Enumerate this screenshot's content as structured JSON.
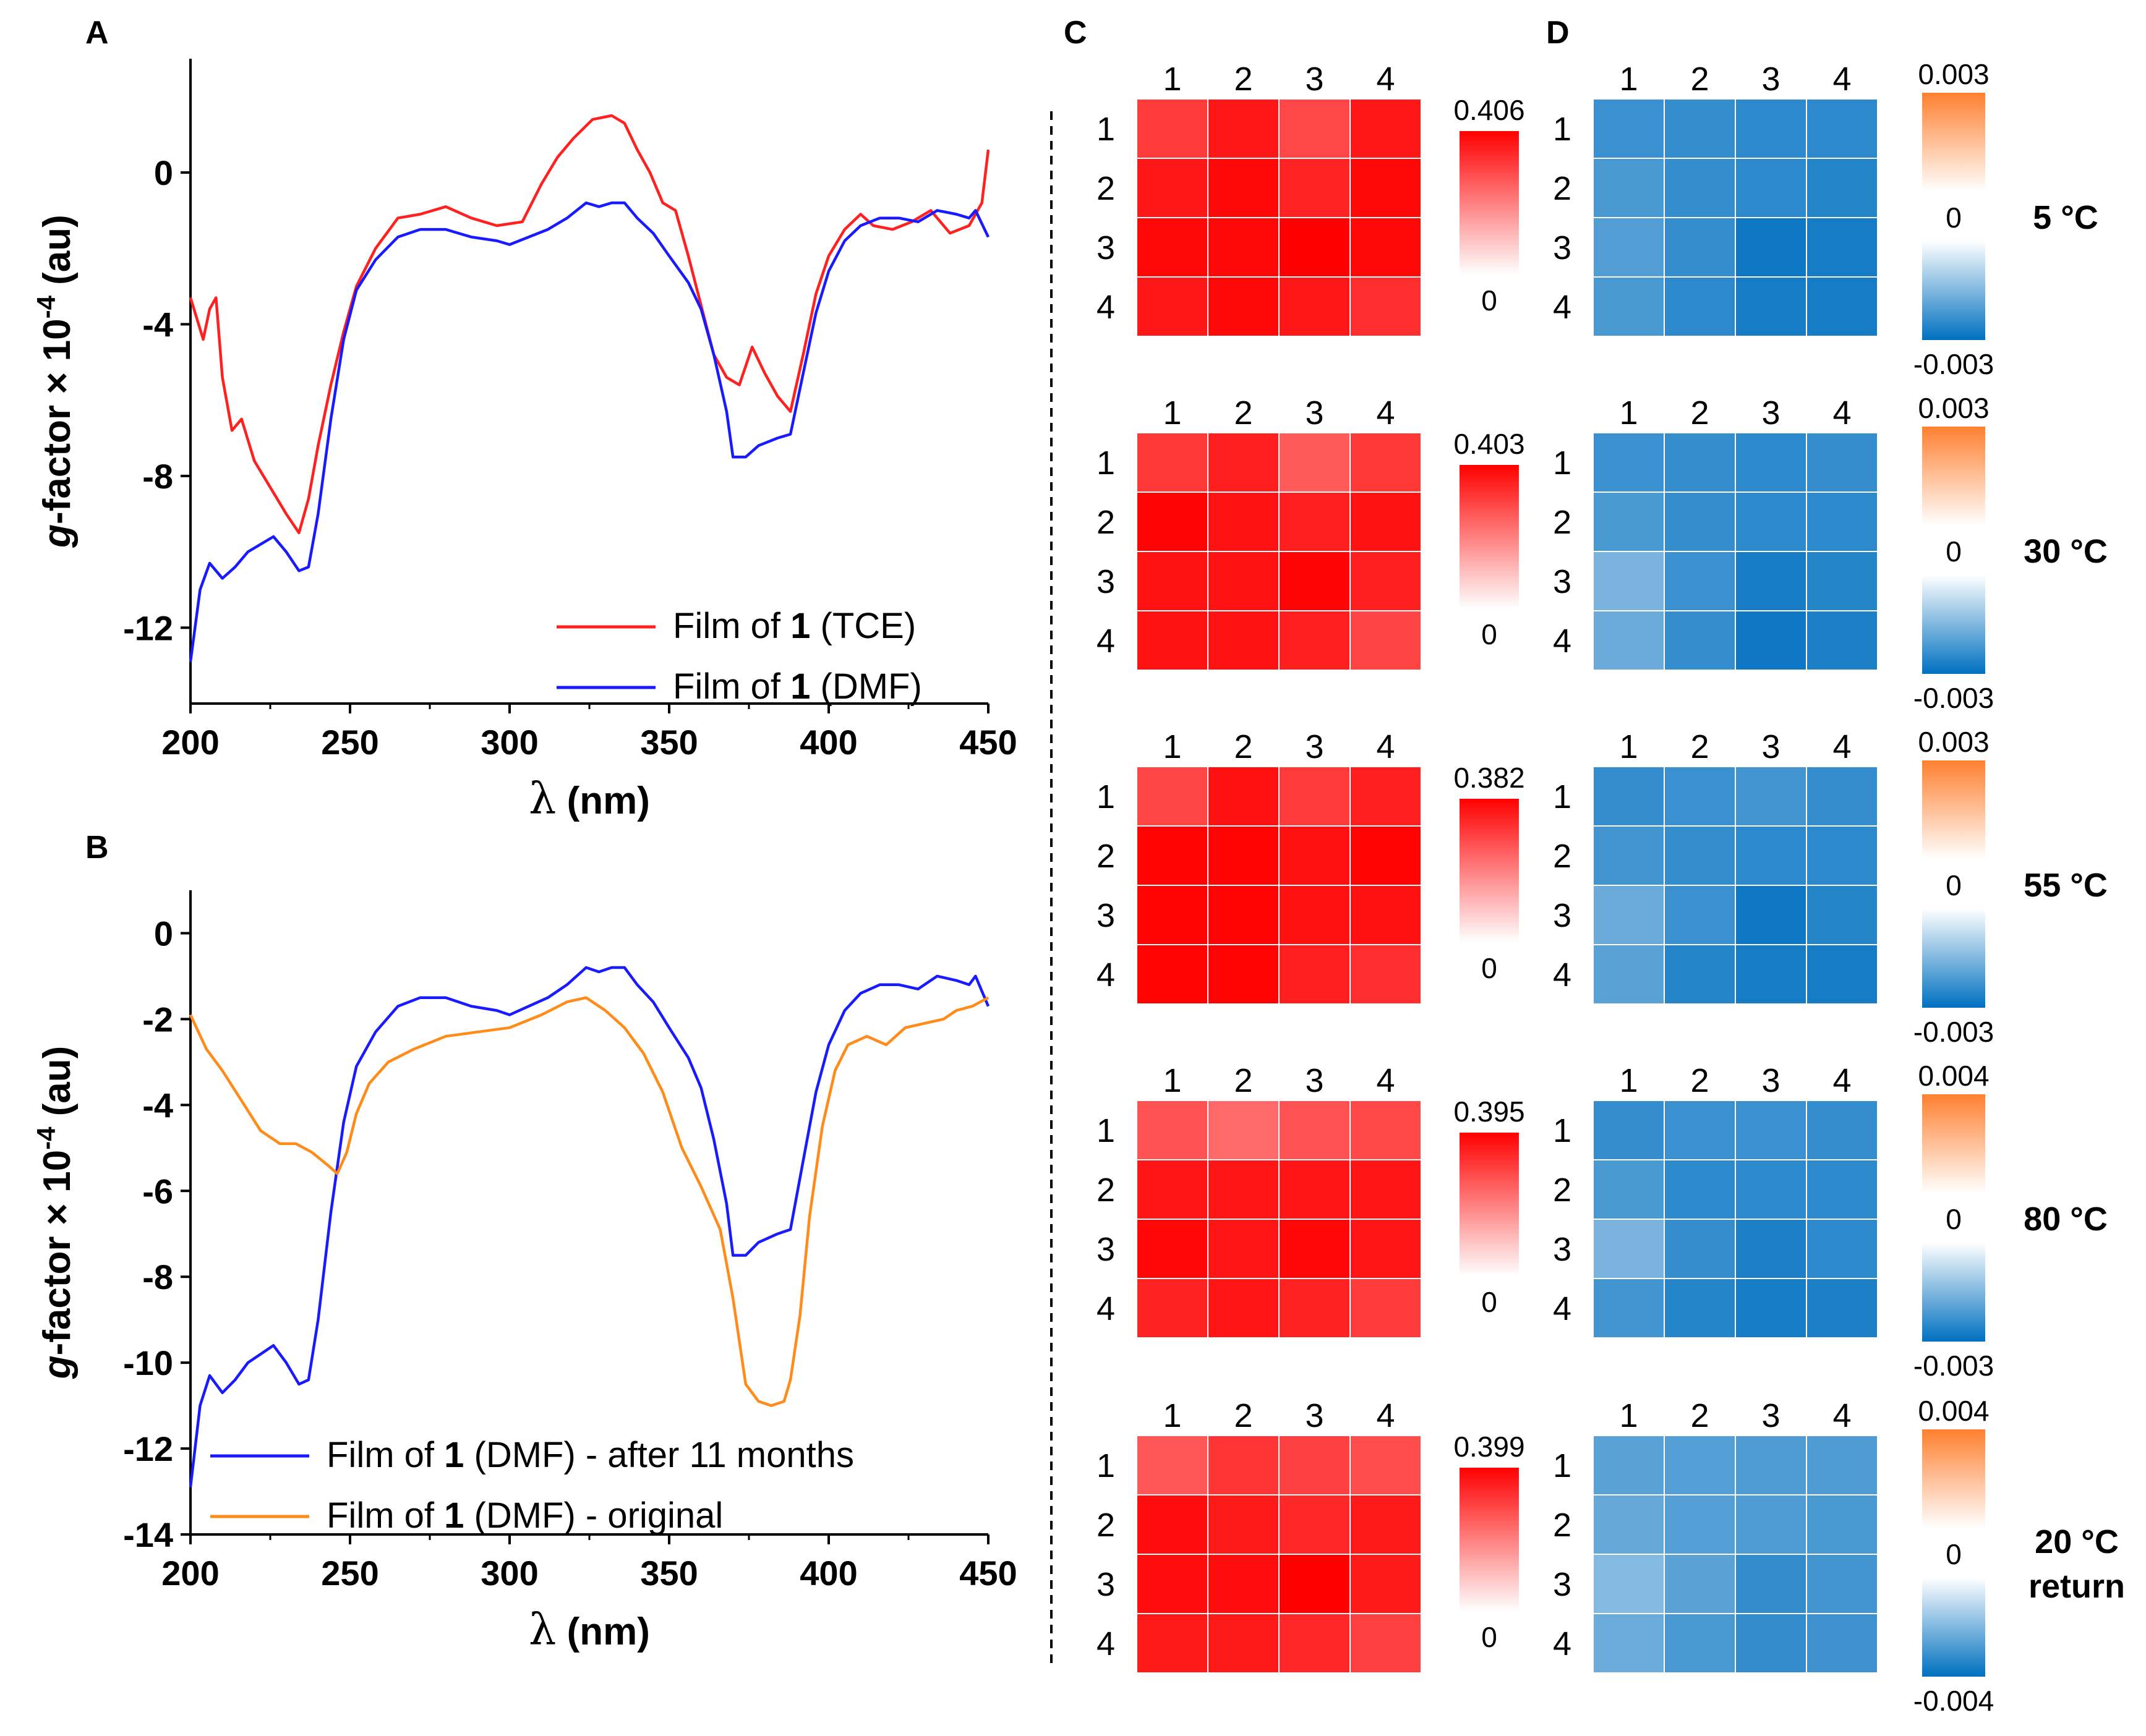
{
  "panels": {
    "A": "A",
    "B": "B",
    "C": "C",
    "D": "D"
  },
  "units": {
    "degree_c": "°C"
  },
  "chart_data": [
    {
      "id": "A",
      "type": "line",
      "xlabel_symbol": "λ",
      "xlabel_unit": "(nm)",
      "ylabel_prefix": "g",
      "ylabel_main": "-factor × 10",
      "ylabel_exp": "-4",
      "ylabel_unit": " (au)",
      "xlim": [
        200,
        450
      ],
      "ylim": [
        -14,
        3
      ],
      "xticks": [
        200,
        250,
        300,
        350,
        400,
        450
      ],
      "yticks": [
        0,
        -4,
        -8,
        -12
      ],
      "ytick_labels": [
        "0",
        "-4",
        "-8",
        "-12"
      ],
      "series": [
        {
          "name": "TCE",
          "legend_prefix": "Film of ",
          "legend_bold": "1",
          "legend_suffix": " (TCE)",
          "color": "#ff2020",
          "x": [
            200,
            204,
            206,
            208,
            210,
            213,
            216,
            220,
            225,
            230,
            234,
            237,
            240,
            244,
            248,
            252,
            258,
            265,
            272,
            280,
            288,
            296,
            304,
            310,
            315,
            320,
            326,
            332,
            336,
            340,
            344,
            348,
            352,
            356,
            360,
            364,
            368,
            372,
            376,
            380,
            384,
            388,
            392,
            396,
            400,
            405,
            410,
            414,
            420,
            426,
            432,
            438,
            444,
            448,
            450
          ],
          "y": [
            -3.3,
            -4.4,
            -3.6,
            -3.3,
            -5.4,
            -6.8,
            -6.5,
            -7.6,
            -8.3,
            -9.0,
            -9.5,
            -8.6,
            -7.2,
            -5.6,
            -4.2,
            -3.0,
            -2.0,
            -1.2,
            -1.1,
            -0.9,
            -1.2,
            -1.4,
            -1.3,
            -0.3,
            0.4,
            0.9,
            1.4,
            1.5,
            1.3,
            0.6,
            0.0,
            -0.8,
            -1.0,
            -2.2,
            -3.5,
            -4.8,
            -5.4,
            -5.6,
            -4.6,
            -5.3,
            -5.9,
            -6.3,
            -4.8,
            -3.2,
            -2.2,
            -1.5,
            -1.1,
            -1.4,
            -1.5,
            -1.3,
            -1.0,
            -1.6,
            -1.4,
            -0.8,
            0.6
          ]
        },
        {
          "name": "DMF",
          "legend_prefix": "Film of ",
          "legend_bold": "1",
          "legend_suffix": " (DMF)",
          "color": "#1a1aff",
          "x": [
            200,
            203,
            206,
            210,
            214,
            218,
            222,
            226,
            230,
            234,
            237,
            240,
            244,
            248,
            252,
            258,
            265,
            272,
            280,
            288,
            296,
            300,
            306,
            312,
            318,
            324,
            328,
            332,
            336,
            340,
            345,
            350,
            356,
            360,
            364,
            368,
            370,
            374,
            378,
            384,
            388,
            392,
            396,
            400,
            405,
            410,
            416,
            422,
            428,
            434,
            440,
            444,
            446,
            450
          ],
          "y": [
            -12.9,
            -11.0,
            -10.3,
            -10.7,
            -10.4,
            -10.0,
            -9.8,
            -9.6,
            -10.0,
            -10.5,
            -10.4,
            -9.0,
            -6.5,
            -4.4,
            -3.1,
            -2.3,
            -1.7,
            -1.5,
            -1.5,
            -1.7,
            -1.8,
            -1.9,
            -1.7,
            -1.5,
            -1.2,
            -0.8,
            -0.9,
            -0.8,
            -0.8,
            -1.2,
            -1.6,
            -2.2,
            -2.9,
            -3.6,
            -4.8,
            -6.3,
            -7.5,
            -7.5,
            -7.2,
            -7.0,
            -6.9,
            -5.3,
            -3.7,
            -2.6,
            -1.8,
            -1.4,
            -1.2,
            -1.2,
            -1.3,
            -1.0,
            -1.1,
            -1.2,
            -1.0,
            -1.7
          ]
        }
      ]
    },
    {
      "id": "B",
      "type": "line",
      "xlabel_symbol": "λ",
      "xlabel_unit": "(nm)",
      "ylabel_prefix": "g",
      "ylabel_main": "-factor × 10",
      "ylabel_exp": "-4",
      "ylabel_unit": " (au)",
      "xlim": [
        200,
        450
      ],
      "ylim": [
        -14,
        1
      ],
      "xticks": [
        200,
        250,
        300,
        350,
        400,
        450
      ],
      "yticks": [
        0,
        -2,
        -4,
        -6,
        -8,
        -10,
        -12,
        -14
      ],
      "ytick_labels": [
        "0",
        "-2",
        "-4",
        "-6",
        "-8",
        "-10",
        "-12",
        "-14"
      ],
      "series": [
        {
          "name": "DMF after 11 months",
          "legend_prefix": "Film of ",
          "legend_bold": "1",
          "legend_suffix": " (DMF) - after 11 months",
          "color": "#1a1aff",
          "x": [
            200,
            203,
            206,
            210,
            214,
            218,
            222,
            226,
            230,
            234,
            237,
            240,
            244,
            248,
            252,
            258,
            265,
            272,
            280,
            288,
            296,
            300,
            306,
            312,
            318,
            324,
            328,
            332,
            336,
            340,
            345,
            350,
            356,
            360,
            364,
            368,
            370,
            374,
            378,
            384,
            388,
            392,
            396,
            400,
            405,
            410,
            416,
            422,
            428,
            434,
            440,
            444,
            446,
            450
          ],
          "y": [
            -12.9,
            -11.0,
            -10.3,
            -10.7,
            -10.4,
            -10.0,
            -9.8,
            -9.6,
            -10.0,
            -10.5,
            -10.4,
            -9.0,
            -6.5,
            -4.4,
            -3.1,
            -2.3,
            -1.7,
            -1.5,
            -1.5,
            -1.7,
            -1.8,
            -1.9,
            -1.7,
            -1.5,
            -1.2,
            -0.8,
            -0.9,
            -0.8,
            -0.8,
            -1.2,
            -1.6,
            -2.2,
            -2.9,
            -3.6,
            -4.8,
            -6.3,
            -7.5,
            -7.5,
            -7.2,
            -7.0,
            -6.9,
            -5.3,
            -3.7,
            -2.6,
            -1.8,
            -1.4,
            -1.2,
            -1.2,
            -1.3,
            -1.0,
            -1.1,
            -1.2,
            -1.0,
            -1.7
          ]
        },
        {
          "name": "DMF original",
          "legend_prefix": "Film of ",
          "legend_bold": "1",
          "legend_suffix": " (DMF) - original",
          "color": "#ff8c1a",
          "x": [
            200,
            205,
            210,
            216,
            222,
            228,
            233,
            238,
            243,
            246,
            249,
            252,
            256,
            262,
            270,
            280,
            290,
            300,
            310,
            318,
            324,
            330,
            336,
            342,
            348,
            354,
            360,
            366,
            370,
            374,
            378,
            382,
            386,
            388,
            391,
            394,
            398,
            402,
            406,
            412,
            418,
            424,
            430,
            436,
            440,
            445,
            450
          ],
          "y": [
            -1.9,
            -2.7,
            -3.2,
            -3.9,
            -4.6,
            -4.9,
            -4.9,
            -5.1,
            -5.4,
            -5.6,
            -5.1,
            -4.2,
            -3.5,
            -3.0,
            -2.7,
            -2.4,
            -2.3,
            -2.2,
            -1.9,
            -1.6,
            -1.5,
            -1.8,
            -2.2,
            -2.8,
            -3.7,
            -5.0,
            -5.9,
            -6.9,
            -8.5,
            -10.5,
            -10.9,
            -11.0,
            -10.9,
            -10.4,
            -8.9,
            -6.6,
            -4.5,
            -3.2,
            -2.6,
            -2.4,
            -2.6,
            -2.2,
            -2.1,
            -2.0,
            -1.8,
            -1.7,
            -1.5
          ]
        }
      ]
    },
    {
      "id": "C",
      "type": "heatmap",
      "row_labels": [
        "1",
        "2",
        "3",
        "4"
      ],
      "col_labels": [
        "1",
        "2",
        "3",
        "4"
      ],
      "colormap": "white-red",
      "colorbar_low": "0",
      "matrices": [
        {
          "temperature": "5",
          "vmax": 0.406,
          "vmax_label": "0.406",
          "values": [
            [
              0.36,
              0.39,
              0.35,
              0.39
            ],
            [
              0.39,
              0.4,
              0.38,
              0.4
            ],
            [
              0.4,
              0.4,
              0.41,
              0.4
            ],
            [
              0.39,
              0.4,
              0.39,
              0.37
            ]
          ]
        },
        {
          "temperature": "30",
          "vmax": 0.403,
          "vmax_label": "0.403",
          "values": [
            [
              0.36,
              0.38,
              0.33,
              0.36
            ],
            [
              0.4,
              0.39,
              0.38,
              0.39
            ],
            [
              0.39,
              0.39,
              0.4,
              0.38
            ],
            [
              0.39,
              0.39,
              0.38,
              0.35
            ]
          ]
        },
        {
          "temperature": "55",
          "vmax": 0.382,
          "vmax_label": "0.382",
          "values": [
            [
              0.33,
              0.37,
              0.34,
              0.36
            ],
            [
              0.38,
              0.38,
              0.37,
              0.38
            ],
            [
              0.38,
              0.38,
              0.37,
              0.37
            ],
            [
              0.38,
              0.38,
              0.36,
              0.35
            ]
          ]
        },
        {
          "temperature": "80",
          "vmax": 0.395,
          "vmax_label": "0.395",
          "values": [
            [
              0.33,
              0.31,
              0.33,
              0.34
            ],
            [
              0.38,
              0.38,
              0.38,
              0.38
            ],
            [
              0.39,
              0.38,
              0.39,
              0.38
            ],
            [
              0.37,
              0.38,
              0.37,
              0.35
            ]
          ]
        },
        {
          "temperature": "20",
          "vmax": 0.399,
          "vmax_label": "0.399",
          "values": [
            [
              0.33,
              0.36,
              0.35,
              0.34
            ],
            [
              0.39,
              0.38,
              0.37,
              0.38
            ],
            [
              0.39,
              0.39,
              0.4,
              0.38
            ],
            [
              0.38,
              0.38,
              0.37,
              0.35
            ]
          ]
        }
      ]
    },
    {
      "id": "D",
      "type": "heatmap",
      "row_labels": [
        "1",
        "2",
        "3",
        "4"
      ],
      "col_labels": [
        "1",
        "2",
        "3",
        "4"
      ],
      "colormap": "blue-white-orange",
      "colorbar_mid": "0",
      "matrices": [
        {
          "temperature": "5",
          "vmin_label": "-0.003",
          "vmax_label": "0.003",
          "vmin": -0.003,
          "vmax": 0.003,
          "values": [
            [
              -0.0022,
              -0.0023,
              -0.0024,
              -0.0024
            ],
            [
              -0.002,
              -0.0023,
              -0.0024,
              -0.0025
            ],
            [
              -0.0019,
              -0.0023,
              -0.0028,
              -0.0027
            ],
            [
              -0.002,
              -0.0024,
              -0.0027,
              -0.0027
            ]
          ]
        },
        {
          "temperature": "30",
          "vmax_label": "0.003",
          "vmin_label": "-0.003",
          "vmin": -0.003,
          "vmax": 0.003,
          "values": [
            [
              -0.0022,
              -0.0023,
              -0.0024,
              -0.0023
            ],
            [
              -0.002,
              -0.0023,
              -0.0024,
              -0.0024
            ],
            [
              -0.0014,
              -0.0022,
              -0.0027,
              -0.0025
            ],
            [
              -0.0016,
              -0.0023,
              -0.0028,
              -0.0026
            ]
          ]
        },
        {
          "temperature": "55",
          "vmax_label": "0.003",
          "vmin_label": "-0.003",
          "vmin": -0.003,
          "vmax": 0.003,
          "values": [
            [
              -0.0023,
              -0.0022,
              -0.0021,
              -0.0023
            ],
            [
              -0.0021,
              -0.0023,
              -0.0024,
              -0.0024
            ],
            [
              -0.0016,
              -0.0022,
              -0.0028,
              -0.0025
            ],
            [
              -0.0018,
              -0.0025,
              -0.0027,
              -0.0027
            ]
          ]
        },
        {
          "temperature": "80",
          "vmax_label": "0.004",
          "vmin_label": "-0.003",
          "vmin": -0.003,
          "vmax": 0.004,
          "values": [
            [
              -0.0023,
              -0.0022,
              -0.0022,
              -0.0023
            ],
            [
              -0.002,
              -0.0024,
              -0.0024,
              -0.0024
            ],
            [
              -0.0014,
              -0.0023,
              -0.0026,
              -0.0024
            ],
            [
              -0.0021,
              -0.0025,
              -0.0027,
              -0.0026
            ]
          ]
        },
        {
          "temperature": "20",
          "vmax_label": "0.004",
          "vmin_label": "-0.004",
          "vmin": -0.004,
          "vmax": 0.004,
          "values": [
            [
              -0.0024,
              -0.0025,
              -0.0026,
              -0.0026
            ],
            [
              -0.0022,
              -0.0025,
              -0.0026,
              -0.0027
            ],
            [
              -0.0017,
              -0.0024,
              -0.0031,
              -0.0028
            ],
            [
              -0.0021,
              -0.0027,
              -0.0031,
              -0.0029
            ]
          ]
        }
      ]
    }
  ],
  "temperature_labels": [
    {
      "value": "5",
      "extra": ""
    },
    {
      "value": "30",
      "extra": ""
    },
    {
      "value": "55",
      "extra": ""
    },
    {
      "value": "80",
      "extra": ""
    },
    {
      "value": "20",
      "extra": "return"
    }
  ]
}
